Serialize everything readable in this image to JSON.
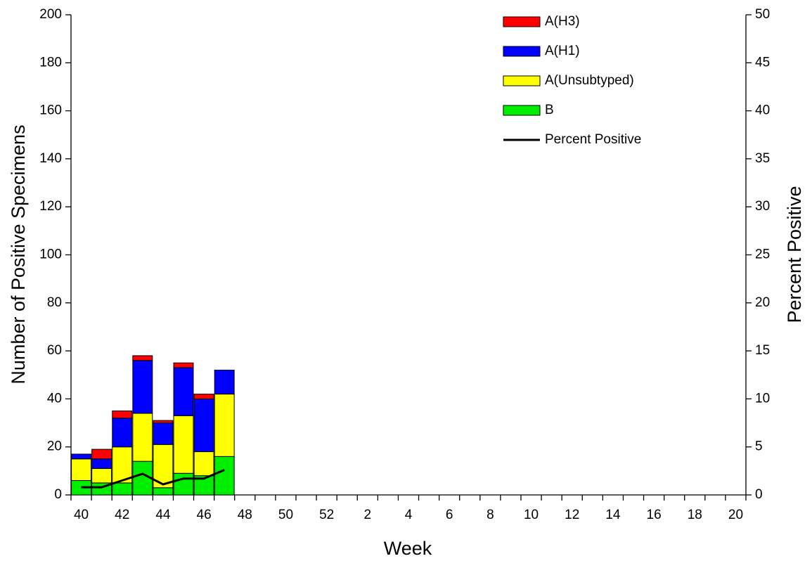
{
  "chart_data": {
    "type": "bar",
    "stacked": true,
    "x_label": "Week",
    "y_label": "Number of Positive Specimens",
    "y2_label": "Percent Positive",
    "categories": [
      40,
      null,
      42,
      null,
      44,
      null,
      46,
      null,
      48,
      null,
      50,
      null,
      52,
      null,
      2,
      null,
      4,
      null,
      6,
      null,
      8,
      null,
      10,
      null,
      12,
      null,
      14,
      null,
      16,
      null,
      18,
      null,
      20
    ],
    "series": [
      {
        "name": "A(H3)",
        "color": "#ff0000",
        "values": [
          0,
          4,
          3,
          2,
          1,
          2,
          2,
          0,
          null,
          null,
          null,
          null,
          null,
          null,
          null,
          null,
          null,
          null,
          null,
          null,
          null,
          null,
          null,
          null,
          null,
          null,
          null,
          null,
          null,
          null,
          null,
          null,
          null
        ]
      },
      {
        "name": "A(H1)",
        "color": "#0000ff",
        "values": [
          2,
          4,
          12,
          22,
          9,
          20,
          22,
          10,
          null,
          null,
          null,
          null,
          null,
          null,
          null,
          null,
          null,
          null,
          null,
          null,
          null,
          null,
          null,
          null,
          null,
          null,
          null,
          null,
          null,
          null,
          null,
          null,
          null
        ]
      },
      {
        "name": "A(Unsubtyped)",
        "color": "#ffff00",
        "values": [
          9,
          6,
          15,
          20,
          18,
          24,
          10,
          26,
          null,
          null,
          null,
          null,
          null,
          null,
          null,
          null,
          null,
          null,
          null,
          null,
          null,
          null,
          null,
          null,
          null,
          null,
          null,
          null,
          null,
          null,
          null,
          null,
          null
        ]
      },
      {
        "name": "B",
        "color": "#00ee00",
        "values": [
          6,
          5,
          5,
          14,
          3,
          9,
          8,
          16,
          null,
          null,
          null,
          null,
          null,
          null,
          null,
          null,
          null,
          null,
          null,
          null,
          null,
          null,
          null,
          null,
          null,
          null,
          null,
          null,
          null,
          null,
          null,
          null,
          null
        ]
      },
      {
        "name": "Percent Positive",
        "type": "line",
        "axis": "y2",
        "color": "#000000",
        "values": [
          0.8,
          0.8,
          1.5,
          2.2,
          1.1,
          1.7,
          1.7,
          2.6,
          null,
          null,
          null,
          null,
          null,
          null,
          null,
          null,
          null,
          null,
          null,
          null,
          null,
          null,
          null,
          null,
          null,
          null,
          null,
          null,
          null,
          null,
          null,
          null,
          null
        ]
      }
    ],
    "ylim": [
      0,
      200
    ],
    "yticks": [
      0,
      20,
      40,
      60,
      80,
      100,
      120,
      140,
      160,
      180,
      200
    ],
    "y2lim": [
      0,
      50
    ],
    "y2ticks": [
      0,
      5,
      10,
      15,
      20,
      25,
      30,
      35,
      40,
      45,
      50
    ],
    "legend": "top-right"
  }
}
